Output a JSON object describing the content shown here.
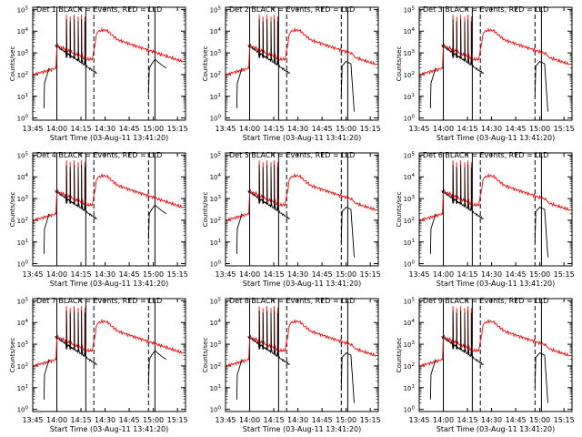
{
  "figure": {
    "common": {
      "xlabel": "Start Time (03-Aug-11 13:41:20)",
      "ylabel": "Counts/sec",
      "title_suffix": "BLACK = Events, RED = LLD",
      "x_ticks": [
        {
          "t": 0,
          "label": "13:45"
        },
        {
          "t": 15,
          "label": "14:00"
        },
        {
          "t": 30,
          "label": "14:15"
        },
        {
          "t": 45,
          "label": "14:30"
        },
        {
          "t": 60,
          "label": "14:45"
        },
        {
          "t": 75,
          "label": "15:00"
        },
        {
          "t": 90,
          "label": "15:15"
        }
      ],
      "y_ticks": [
        {
          "e": 0,
          "label": "10^0"
        },
        {
          "e": 1,
          "label": "10^1"
        },
        {
          "e": 2,
          "label": "10^2"
        },
        {
          "e": 3,
          "label": "10^3"
        },
        {
          "e": 4,
          "label": "10^4"
        },
        {
          "e": 5,
          "label": "10^5"
        }
      ]
    }
  },
  "chart_data": [
    {
      "type": "line",
      "title": "Det 1",
      "xlabel": "Start Time (03-Aug-11 13:41:20)",
      "ylabel": "Counts/sec",
      "x_unit": "minutes after 13:45",
      "ylim": [
        1,
        100000
      ],
      "yscale": "log",
      "vlines_solid": [
        15,
        33,
        76
      ],
      "vlines_dashed": [
        38,
        72
      ],
      "series": [
        {
          "name": "Events",
          "color": "#000000",
          "variant": "a"
        },
        {
          "name": "LLD",
          "color": "#ff0000",
          "variant": "a"
        }
      ]
    },
    {
      "type": "line",
      "title": "Det 2",
      "xlabel": "Start Time (03-Aug-11 13:41:20)",
      "ylabel": "Counts/sec",
      "x_unit": "minutes after 13:45",
      "ylim": [
        1,
        100000
      ],
      "yscale": "log",
      "vlines_solid": [
        15,
        33,
        76
      ],
      "vlines_dashed": [
        38,
        72
      ],
      "series": [
        {
          "name": "Events",
          "color": "#000000",
          "variant": "b"
        },
        {
          "name": "LLD",
          "color": "#ff0000",
          "variant": "b"
        }
      ]
    },
    {
      "type": "line",
      "title": "Det 3",
      "xlabel": "Start Time (03-Aug-11 13:41:20)",
      "ylabel": "Counts/sec",
      "x_unit": "minutes after 13:45",
      "ylim": [
        1,
        100000
      ],
      "yscale": "log",
      "vlines_solid": [
        15,
        33,
        76
      ],
      "vlines_dashed": [
        38,
        72
      ],
      "series": [
        {
          "name": "Events",
          "color": "#000000",
          "variant": "b"
        },
        {
          "name": "LLD",
          "color": "#ff0000",
          "variant": "b"
        }
      ]
    },
    {
      "type": "line",
      "title": "Det 4",
      "xlabel": "Start Time (03-Aug-11 13:41:20)",
      "ylabel": "Counts/sec",
      "x_unit": "minutes after 13:45",
      "ylim": [
        1,
        100000
      ],
      "yscale": "log",
      "vlines_solid": [
        15,
        33,
        76
      ],
      "vlines_dashed": [
        38,
        72
      ],
      "series": [
        {
          "name": "Events",
          "color": "#000000",
          "variant": "a"
        },
        {
          "name": "LLD",
          "color": "#ff0000",
          "variant": "a"
        }
      ]
    },
    {
      "type": "line",
      "title": "Det 5",
      "xlabel": "Start Time (03-Aug-11 13:41:20)",
      "ylabel": "Counts/sec",
      "x_unit": "minutes after 13:45",
      "ylim": [
        1,
        100000
      ],
      "yscale": "log",
      "vlines_solid": [
        15,
        33,
        76
      ],
      "vlines_dashed": [
        38,
        72
      ],
      "series": [
        {
          "name": "Events",
          "color": "#000000",
          "variant": "b"
        },
        {
          "name": "LLD",
          "color": "#ff0000",
          "variant": "b"
        }
      ]
    },
    {
      "type": "line",
      "title": "Det 6",
      "xlabel": "Start Time (03-Aug-11 13:41:20)",
      "ylabel": "Counts/sec",
      "x_unit": "minutes after 13:45",
      "ylim": [
        1,
        100000
      ],
      "yscale": "log",
      "vlines_solid": [
        15,
        33,
        76
      ],
      "vlines_dashed": [
        38,
        72
      ],
      "series": [
        {
          "name": "Events",
          "color": "#000000",
          "variant": "b"
        },
        {
          "name": "LLD",
          "color": "#ff0000",
          "variant": "b"
        }
      ]
    },
    {
      "type": "line",
      "title": "Det 7",
      "xlabel": "Start Time (03-Aug-11 13:41:20)",
      "ylabel": "Counts/sec",
      "x_unit": "minutes after 13:45",
      "ylim": [
        1,
        100000
      ],
      "yscale": "log",
      "vlines_solid": [
        15,
        33,
        76
      ],
      "vlines_dashed": [
        38,
        72
      ],
      "series": [
        {
          "name": "Events",
          "color": "#000000",
          "variant": "a"
        },
        {
          "name": "LLD",
          "color": "#ff0000",
          "variant": "a"
        }
      ]
    },
    {
      "type": "line",
      "title": "Det 8",
      "xlabel": "Start Time (03-Aug-11 13:41:20)",
      "ylabel": "Counts/sec",
      "x_unit": "minutes after 13:45",
      "ylim": [
        1,
        100000
      ],
      "yscale": "log",
      "vlines_solid": [
        15,
        33,
        76
      ],
      "vlines_dashed": [
        38,
        72
      ],
      "series": [
        {
          "name": "Events",
          "color": "#000000",
          "variant": "b"
        },
        {
          "name": "LLD",
          "color": "#ff0000",
          "variant": "b"
        }
      ]
    },
    {
      "type": "line",
      "title": "Det 9",
      "xlabel": "Start Time (03-Aug-11 13:41:20)",
      "ylabel": "Counts/sec",
      "x_unit": "minutes after 13:45",
      "ylim": [
        1,
        100000
      ],
      "yscale": "log",
      "vlines_solid": [
        15,
        33,
        76
      ],
      "vlines_dashed": [
        38,
        72
      ],
      "series": [
        {
          "name": "Events",
          "color": "#000000",
          "variant": "b"
        },
        {
          "name": "LLD",
          "color": "#ff0000",
          "variant": "b"
        }
      ]
    }
  ]
}
